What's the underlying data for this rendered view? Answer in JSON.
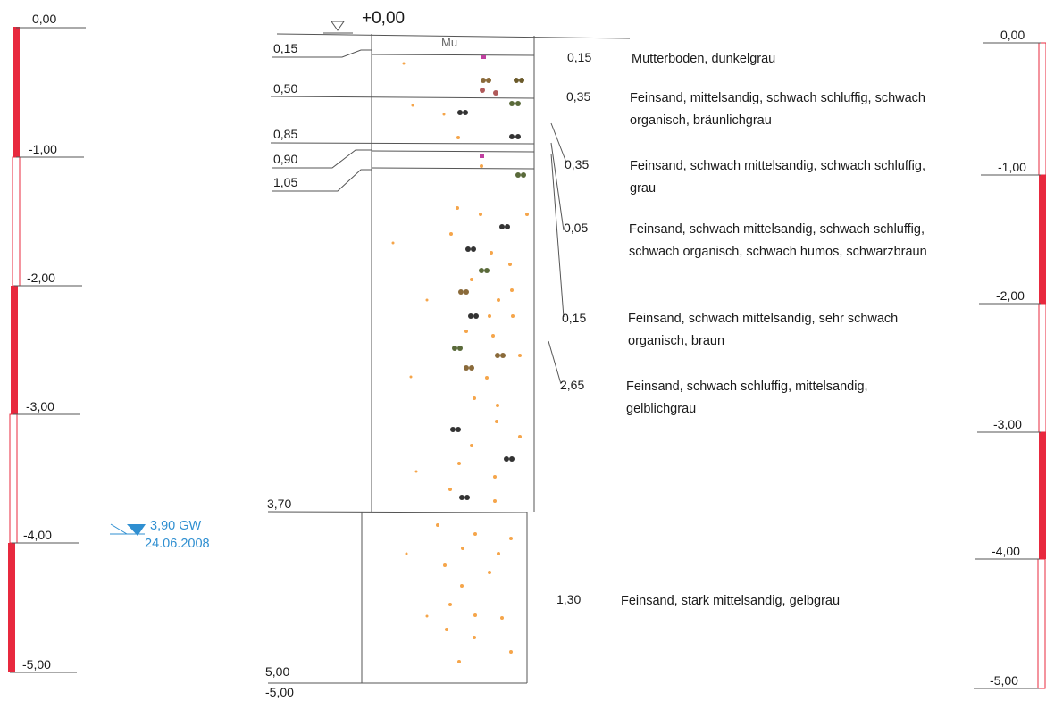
{
  "colors": {
    "scale_red": "#e8293e",
    "gw_blue": "#2f8fd1",
    "line": "#555555"
  },
  "left_scale": {
    "labels": [
      "0,00",
      "-1,00",
      "-2,00",
      "-3,00",
      "-4,00",
      "-5,00"
    ]
  },
  "right_scale": {
    "labels": [
      "0,00",
      "-1,00",
      "-2,00",
      "-3,00",
      "-4,00",
      "-5,00"
    ]
  },
  "profile": {
    "top_label": "+0,00",
    "column_marker": "Mu",
    "depth_labels": [
      "0,15",
      "0,50",
      "0,85",
      "0,90",
      "1,05",
      "3,70",
      "5,00"
    ],
    "bottom_label": "-5,00"
  },
  "groundwater": {
    "level": "3,90 GW",
    "date": "24.06.2008"
  },
  "layers": [
    {
      "thickness": "0,15",
      "description": "Mutterboden, dunkelgrau"
    },
    {
      "thickness": "0,35",
      "description": "Feinsand, mittelsandig, schwach schluffig, schwach organisch, bräunlichgrau"
    },
    {
      "thickness": "0,35",
      "description": "Feinsand, schwach mittelsandig, schwach schluffig, grau"
    },
    {
      "thickness": "0,05",
      "description": "Feinsand, schwach mittelsandig, schwach schluffig, schwach organisch, schwach humos, schwarzbraun"
    },
    {
      "thickness": "0,15",
      "description": "Feinsand, schwach mittelsandig, sehr schwach organisch, braun"
    },
    {
      "thickness": "2,65",
      "description": "Feinsand, schwach schluffig, mittelsandig, gelblichgrau"
    },
    {
      "thickness": "1,30",
      "description": "Feinsand, stark mittelsandig, gelbgrau"
    }
  ]
}
